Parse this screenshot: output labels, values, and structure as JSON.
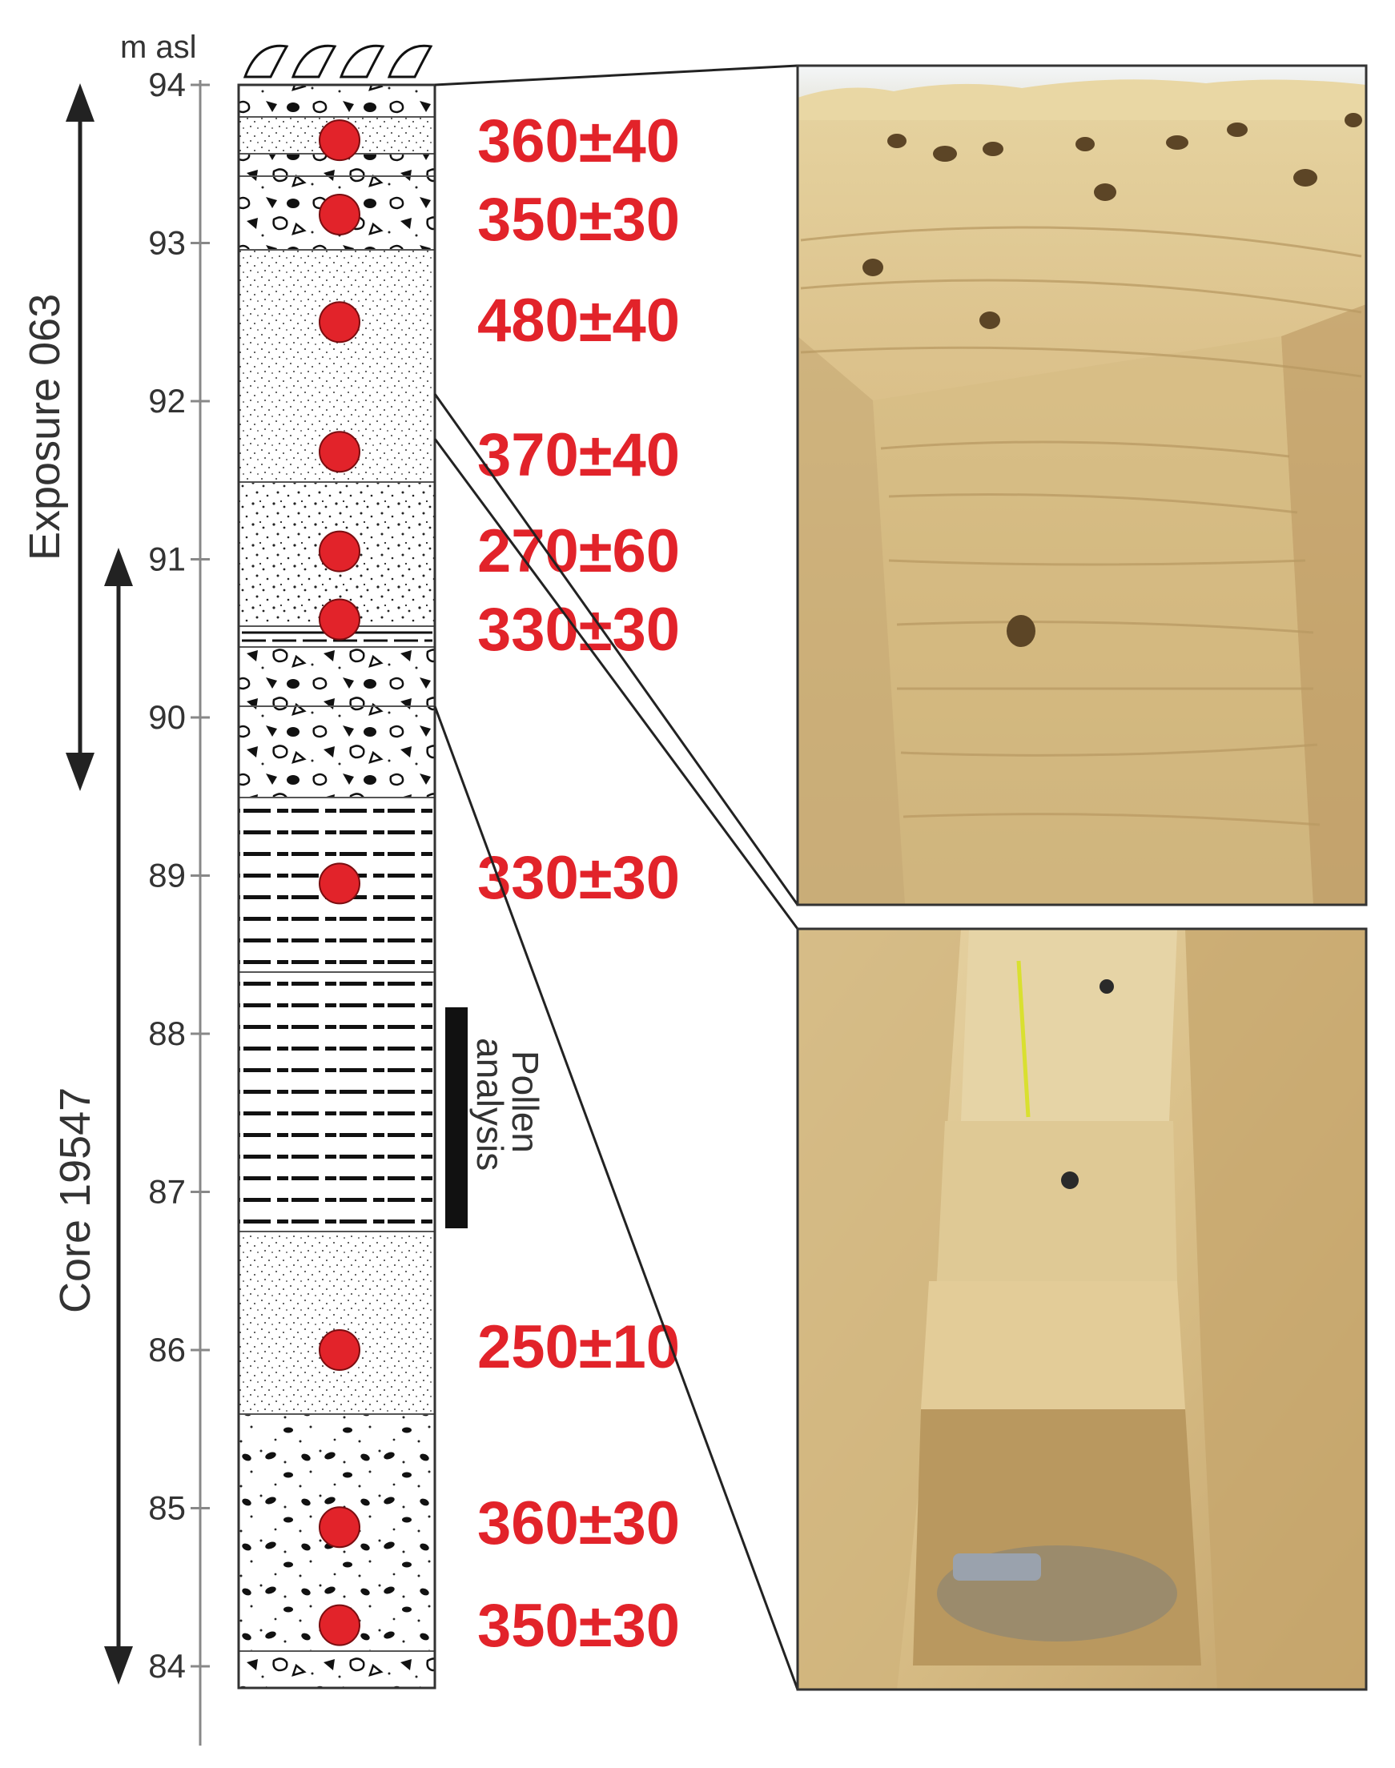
{
  "axis": {
    "unit": "m asl",
    "ticks": [
      "94",
      "93",
      "92",
      "91",
      "90",
      "89",
      "88",
      "87",
      "86",
      "85",
      "84"
    ]
  },
  "ranges": {
    "exposure": "Exposure 063",
    "core": "Core 19547"
  },
  "pollen": {
    "line1": "Pollen",
    "line2": "analysis"
  },
  "samples": [
    {
      "age": "360±40",
      "elevation_m": 93.65
    },
    {
      "age": "350±30",
      "elevation_m": 93.18
    },
    {
      "age": "480±40",
      "elevation_m": 92.5
    },
    {
      "age": "370±40",
      "elevation_m": 91.68
    },
    {
      "age": "270±60",
      "elevation_m": 91.05
    },
    {
      "age": "330±30",
      "elevation_m": 90.62
    },
    {
      "age": "330±30",
      "elevation_m": 88.95
    },
    {
      "age": "250±10",
      "elevation_m": 86.0
    },
    {
      "age": "360±30",
      "elevation_m": 84.88
    },
    {
      "age": "350±30",
      "elevation_m": 84.26
    }
  ],
  "colors": {
    "sample_dot": "#e2232a",
    "age_text": "#e2232a",
    "photo_sand": "#dcc28c",
    "photo_shadow": "#b89a62"
  },
  "photos": {
    "top": "upper-exposure-photo",
    "bottom": "trench-core-photo"
  }
}
